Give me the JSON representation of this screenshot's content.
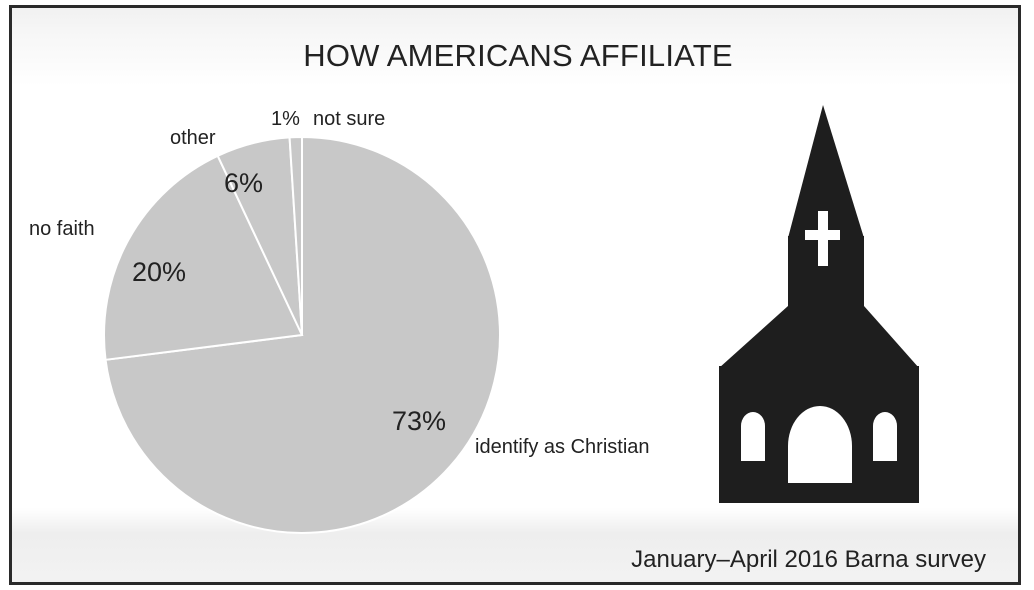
{
  "chart_data": {
    "type": "pie",
    "title": "HOW AMERICANS AFFILIATE",
    "source": "January–April 2016 Barna survey",
    "slices": [
      {
        "label": "identify as Christian",
        "value": 73,
        "value_label": "73%"
      },
      {
        "label": "no faith",
        "value": 20,
        "value_label": "20%"
      },
      {
        "label": "other",
        "value": 6,
        "value_label": "6%"
      },
      {
        "label": "not sure",
        "value": 1,
        "value_label": "1%"
      }
    ],
    "colors": {
      "slice": "#c8c8c8",
      "divider": "#ffffff",
      "church": "#1e1e1e"
    }
  },
  "icon": "church-icon"
}
